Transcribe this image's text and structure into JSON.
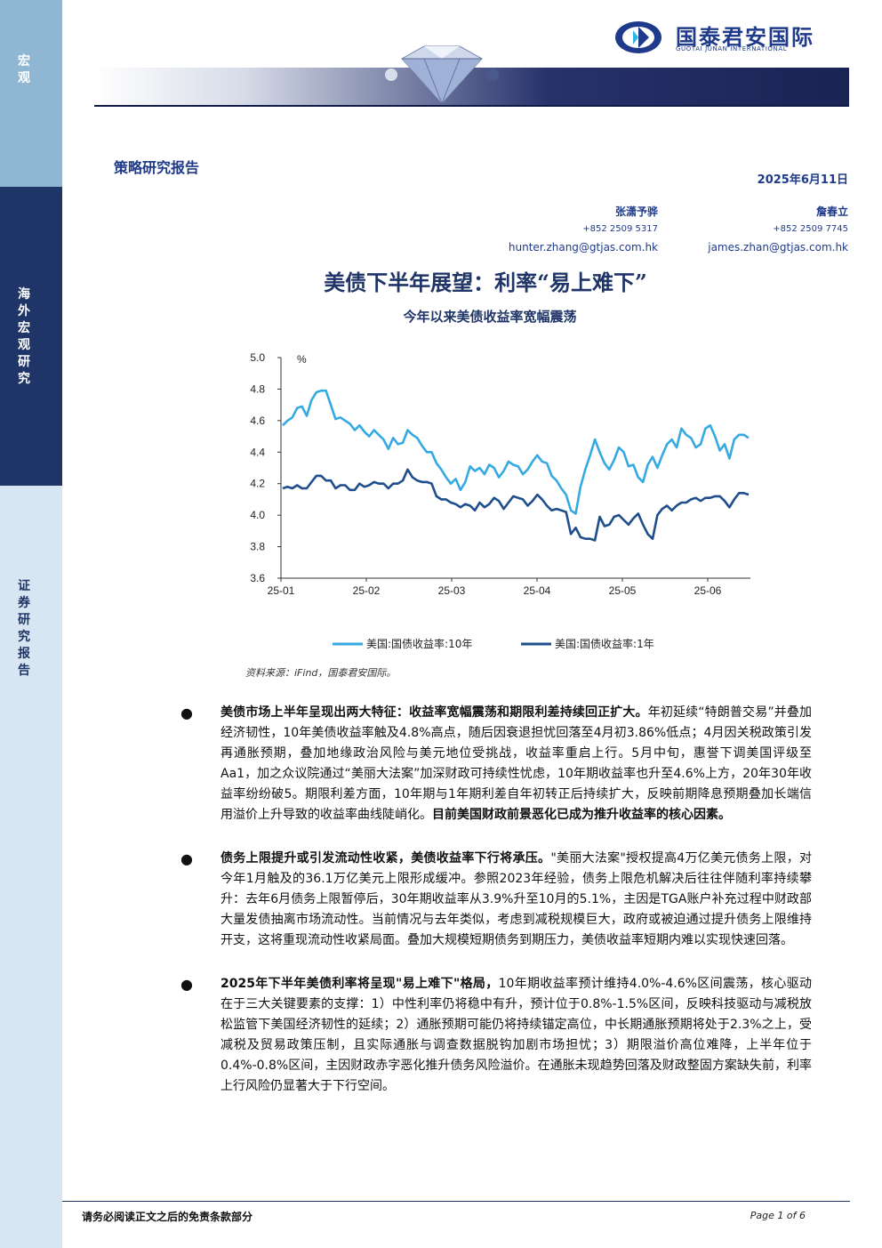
{
  "sidebar": {
    "section_macro": "宏观",
    "section_research": "海外宏观研究",
    "section_report": "证券研究报告"
  },
  "header": {
    "logo_cn": "国泰君安国际",
    "logo_en": "GUOTAI JUNAN INTERNATIONAL",
    "report_type": "策略研究报告",
    "date": "2025年6月11日"
  },
  "authors": [
    {
      "name": "张潇予骅",
      "phone": "+852 2509 5317",
      "email": "hunter.zhang@gtjas.com.hk"
    },
    {
      "name": "詹春立",
      "phone": "+852 2509 7745",
      "email": "james.zhan@gtjas.com.hk"
    }
  ],
  "title": "美债下半年展望：利率“易上难下”",
  "chart_section_title": "今年以来美债收益率宽幅震荡",
  "chart_data": {
    "type": "line",
    "ylabel": "%",
    "ylim": [
      3.6,
      5.0
    ],
    "yticks": [
      "5.0",
      "4.8",
      "4.6",
      "4.4",
      "4.2",
      "4.0",
      "3.8",
      "3.6"
    ],
    "xticks": [
      "25-01",
      "25-02",
      "25-03",
      "25-04",
      "25-05",
      "25-06"
    ],
    "grid": false,
    "legend_position": "bottom",
    "series": [
      {
        "name": "美国:国债收益率:10年",
        "color": "#35a9e1",
        "values": [
          4.57,
          4.6,
          4.62,
          4.68,
          4.69,
          4.63,
          4.73,
          4.78,
          4.79,
          4.79,
          4.7,
          4.61,
          4.62,
          4.6,
          4.58,
          4.54,
          4.57,
          4.53,
          4.5,
          4.54,
          4.51,
          4.48,
          4.42,
          4.49,
          4.45,
          4.46,
          4.54,
          4.51,
          4.49,
          4.44,
          4.4,
          4.4,
          4.33,
          4.29,
          4.24,
          4.2,
          4.23,
          4.16,
          4.21,
          4.31,
          4.28,
          4.3,
          4.26,
          4.32,
          4.3,
          4.24,
          4.28,
          4.34,
          4.32,
          4.31,
          4.26,
          4.29,
          4.34,
          4.38,
          4.34,
          4.33,
          4.25,
          4.22,
          4.17,
          4.13,
          4.03,
          4.01,
          4.18,
          4.29,
          4.38,
          4.48,
          4.4,
          4.33,
          4.29,
          4.35,
          4.43,
          4.4,
          4.31,
          4.32,
          4.24,
          4.21,
          4.32,
          4.37,
          4.3,
          4.38,
          4.45,
          4.48,
          4.43,
          4.55,
          4.51,
          4.49,
          4.43,
          4.45,
          4.55,
          4.57,
          4.5,
          4.41,
          4.45,
          4.36,
          4.48,
          4.51,
          4.51,
          4.49
        ]
      },
      {
        "name": "美国:国债收益率:1年",
        "color": "#1f4e8c",
        "values": [
          4.17,
          4.18,
          4.17,
          4.19,
          4.17,
          4.17,
          4.21,
          4.25,
          4.25,
          4.22,
          4.22,
          4.17,
          4.19,
          4.19,
          4.16,
          4.16,
          4.2,
          4.18,
          4.19,
          4.21,
          4.2,
          4.2,
          4.17,
          4.2,
          4.2,
          4.22,
          4.29,
          4.24,
          4.22,
          4.21,
          4.21,
          4.2,
          4.12,
          4.1,
          4.1,
          4.08,
          4.07,
          4.05,
          4.07,
          4.06,
          4.03,
          4.08,
          4.05,
          4.07,
          4.11,
          4.09,
          4.04,
          4.08,
          4.12,
          4.11,
          4.1,
          4.06,
          4.09,
          4.13,
          4.1,
          4.06,
          4.03,
          4.04,
          4.03,
          4.02,
          3.88,
          3.92,
          3.86,
          3.85,
          3.85,
          3.84,
          3.99,
          3.93,
          3.94,
          3.99,
          4.0,
          3.97,
          3.94,
          3.98,
          4.01,
          3.94,
          3.88,
          3.85,
          4.0,
          4.04,
          4.06,
          4.03,
          4.06,
          4.08,
          4.08,
          4.1,
          4.11,
          4.09,
          4.11,
          4.11,
          4.12,
          4.12,
          4.09,
          4.05,
          4.1,
          4.14,
          4.14,
          4.13
        ]
      }
    ]
  },
  "source": "资料来源：iFind，国泰君安国际。",
  "bullets": [
    {
      "bold": "美债市场上半年呈现出两大特征：收益率宽幅震荡和期限利差持续回正扩大。",
      "text": "年初延续“特朗普交易”并叠加经济韧性，10年美债收益率触及4.8%高点，随后因衰退担忧回落至4月初3.86%低点；4月因关税政策引发再通胀预期，叠加地缘政治风险与美元地位受挑战，收益率重启上行。5月中旬，惠誉下调美国评级至Aa1，加之众议院通过“美丽大法案”加深财政可持续性忧虑，10年期收益率也升至4.6%上方，20年30年收益率纷纷破5。期限利差方面，10年期与1年期利差自年初转正后持续扩大，反映前期降息预期叠加长端信用溢价上升导致的收益率曲线陡峭化。",
      "bold_end": "目前美国财政前景恶化已成为推升收益率的核心因素。"
    },
    {
      "bold": "债务上限提升或引发流动性收紧，美债收益率下行将承压。",
      "text": "\"美丽大法案\"授权提高4万亿美元债务上限，对今年1月触及的36.1万亿美元上限形成缓冲。参照2023年经验，债务上限危机解决后往往伴随利率持续攀升：去年6月债务上限暂停后，30年期收益率从3.9%升至10月的5.1%，主因是TGA账户补充过程中财政部大量发债抽离市场流动性。当前情况与去年类似，考虑到减税规模巨大，政府或被迫通过提升债务上限维持开支，这将重现流动性收紧局面。叠加大规模短期债务到期压力，美债收益率短期内难以实现快速回落。",
      "bold_end": ""
    },
    {
      "bold": "2025年下半年美债利率将呈现\"易上难下\"格局，",
      "text": "10年期收益率预计维持4.0%-4.6%区间震荡，核心驱动在于三大关键要素的支撑：1）中性利率仍将稳中有升，预计位于0.8%-1.5%区间，反映科技驱动与减税放松监管下美国经济韧性的延续；2）通胀预期可能仍将持续锚定高位，中长期通胀预期将处于2.3%之上，受减税及贸易政策压制，且实际通胀与调查数据脱钩加剧市场担忧；3）期限溢价高位难降，上半年位于0.4%-0.8%区间，主因财政赤字恶化推升债务风险溢价。在通胀未现趋势回落及财政整固方案缺失前，利率上行风险仍显著大于下行空间。",
      "bold_end": ""
    }
  ],
  "footer": {
    "disclaimer": "请务必阅读正文之后的免责条款部分",
    "page": "Page 1 of 6"
  }
}
